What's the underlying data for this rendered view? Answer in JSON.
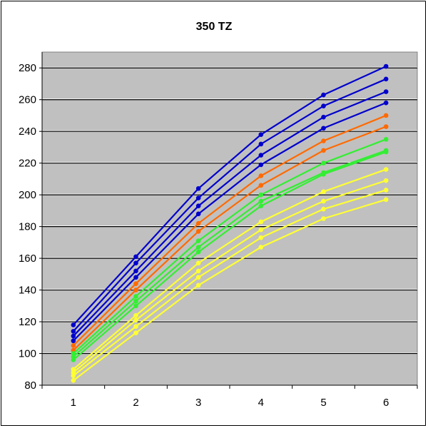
{
  "chart_data": {
    "type": "line",
    "title": "350 TZ",
    "xlabel": "",
    "ylabel": "",
    "categories": [
      "1",
      "2",
      "3",
      "4",
      "5",
      "6"
    ],
    "x": [
      1,
      2,
      3,
      4,
      5,
      6
    ],
    "ylim": [
      80,
      290
    ],
    "yticks": [
      80,
      100,
      120,
      140,
      160,
      180,
      200,
      220,
      240,
      260,
      280
    ],
    "grid": true,
    "legend": "none",
    "plot_background": "#c0c0c0",
    "series": [
      {
        "color": "#0000cc",
        "values": [
          118,
          161,
          204,
          238,
          263,
          281
        ]
      },
      {
        "color": "#0000cc",
        "values": [
          114,
          157,
          198,
          232,
          256,
          273
        ]
      },
      {
        "color": "#0000cc",
        "values": [
          111,
          152,
          193,
          225,
          249,
          265
        ]
      },
      {
        "color": "#0000cc",
        "values": [
          108,
          148,
          188,
          219,
          242,
          258
        ]
      },
      {
        "color": "#ff6a00",
        "values": [
          105,
          144,
          182,
          212,
          234,
          250
        ]
      },
      {
        "color": "#ff6a00",
        "values": [
          102,
          140,
          177,
          206,
          228,
          243
        ]
      },
      {
        "color": "#33ee33",
        "values": [
          100,
          136,
          171,
          200,
          220,
          235
        ]
      },
      {
        "color": "#33ee33",
        "values": [
          98,
          133,
          167,
          196,
          214,
          228
        ]
      },
      {
        "color": "#33ee33",
        "values": [
          96,
          130,
          164,
          193,
          213,
          227
        ]
      },
      {
        "color": "#ffff33",
        "values": [
          90,
          124,
          157,
          183,
          202,
          216
        ]
      },
      {
        "color": "#ffff33",
        "values": [
          88,
          121,
          152,
          178,
          196,
          209
        ]
      },
      {
        "color": "#ffff33",
        "values": [
          86,
          117,
          148,
          173,
          191,
          203
        ]
      },
      {
        "color": "#ffff33",
        "values": [
          83,
          113,
          143,
          167,
          185,
          197
        ]
      }
    ]
  }
}
